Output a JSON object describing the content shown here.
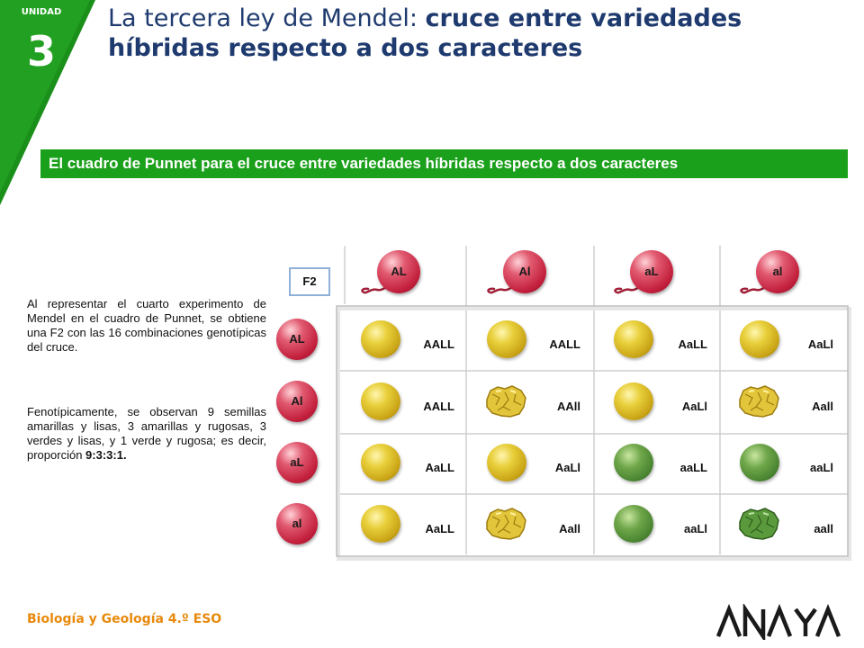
{
  "unit": {
    "label": "UNIDAD",
    "number": "3"
  },
  "title": {
    "part1": "La tercera ley de Mendel: ",
    "part2": "cruce entre variedades",
    "line2": "híbridas respecto a dos caracteres"
  },
  "banner": "El cuadro de Punnet para el cruce entre variedades híbridas respecto a dos caracteres",
  "paragraph1": "Al representar el cuarto experimento de Mendel en el cuadro de Punnet, se obtiene una F2 con las 16 combinaciones genotípicas del cruce.",
  "paragraph2": {
    "text": "Fenotípicamente, se observan 9 se­millas amarillas y lisas, 3 amarillas y rugosas, 3 verdes y lisas, y 1 verde y rugosa; es decir, proporción ",
    "ratio": "9:3:3:1."
  },
  "punnett": {
    "corner_label": "F2",
    "top_gametes": [
      "AL",
      "Al",
      "aL",
      "al"
    ],
    "left_gametes": [
      "AL",
      "Al",
      "aL",
      "al"
    ],
    "rows": [
      [
        {
          "genotype": "AALL",
          "seed": "yellow-smooth"
        },
        {
          "genotype": "AALL",
          "seed": "yellow-smooth"
        },
        {
          "genotype": "AaLL",
          "seed": "yellow-smooth"
        },
        {
          "genotype": "AaLl",
          "seed": "yellow-smooth"
        }
      ],
      [
        {
          "genotype": "AALL",
          "seed": "yellow-smooth"
        },
        {
          "genotype": "AAll",
          "seed": "yellow-wrinkled"
        },
        {
          "genotype": "AaLl",
          "seed": "yellow-smooth"
        },
        {
          "genotype": "Aall",
          "seed": "yellow-wrinkled"
        }
      ],
      [
        {
          "genotype": "AaLL",
          "seed": "yellow-smooth"
        },
        {
          "genotype": "AaLl",
          "seed": "yellow-smooth"
        },
        {
          "genotype": "aaLL",
          "seed": "green-smooth"
        },
        {
          "genotype": "aaLl",
          "seed": "green-smooth"
        }
      ],
      [
        {
          "genotype": "AaLL",
          "seed": "yellow-smooth"
        },
        {
          "genotype": "Aall",
          "seed": "yellow-wrinkled"
        },
        {
          "genotype": "aaLl",
          "seed": "green-smooth"
        },
        {
          "genotype": "aall",
          "seed": "green-wrinkled"
        }
      ]
    ]
  },
  "footer": {
    "subject": "Biología y Geología 4.º ESO",
    "publisher": "ANAYA"
  },
  "colors": {
    "accent_green": "#1ba01b",
    "title_blue": "#1e3a6e",
    "footer_orange": "#e8890c",
    "gamete_red": "#c21f3c"
  }
}
